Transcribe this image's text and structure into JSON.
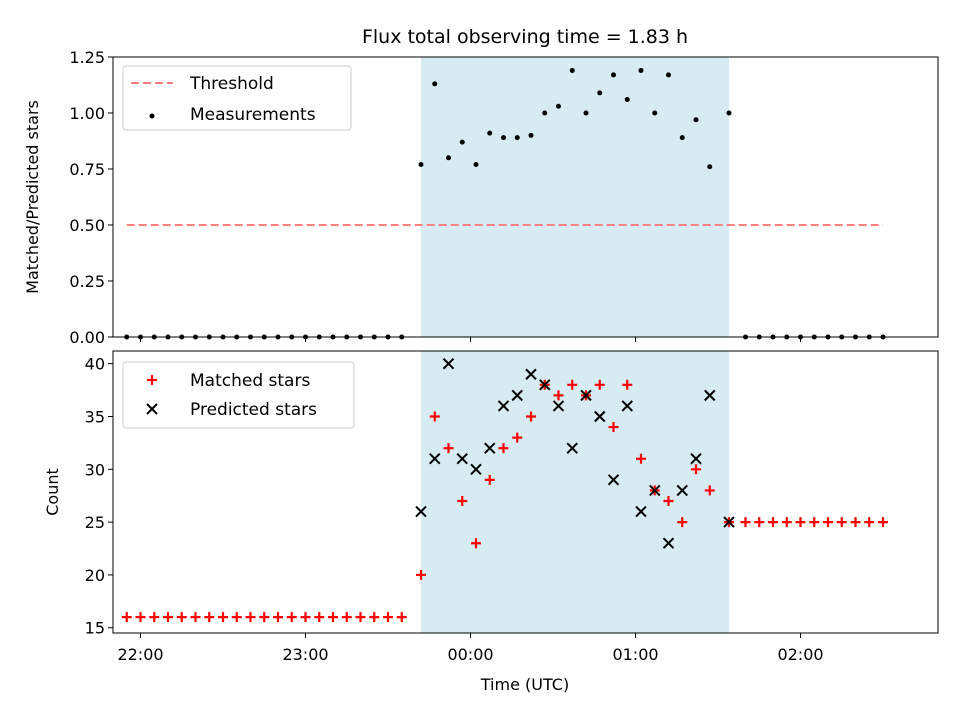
{
  "title": "Flux total observing time = 1.83 h",
  "colors": {
    "shade": "#add8e6",
    "threshold": "#ff7f7f",
    "matched": "#ff0000",
    "predicted": "#000000",
    "measurement": "#000000"
  },
  "chart_data": [
    {
      "type": "scatter",
      "panel": "top",
      "ylabel": "Matched/Predicted stars",
      "xlabel": "",
      "ylim": [
        0,
        1.25
      ],
      "yticks": [
        0.0,
        0.25,
        0.5,
        0.75,
        1.0,
        1.25
      ],
      "yticklabels": [
        "0.00",
        "0.25",
        "0.50",
        "0.75",
        "1.00",
        "1.25"
      ],
      "xlim": [
        "21:50",
        "02:50"
      ],
      "shaded_span": [
        "23:42",
        "01:34"
      ],
      "legend": {
        "placement": "top-left",
        "entries": [
          {
            "label": "Threshold",
            "marker": "dashed-line"
          },
          {
            "label": "Measurements",
            "marker": "dot"
          }
        ]
      },
      "threshold": {
        "name": "Threshold",
        "value": 0.5,
        "x_range": [
          "21:55",
          "02:30"
        ]
      },
      "series": [
        {
          "name": "Measurements",
          "x": [
            "21:55",
            "22:00",
            "22:05",
            "22:10",
            "22:15",
            "22:20",
            "22:25",
            "22:30",
            "22:35",
            "22:40",
            "22:45",
            "22:50",
            "22:55",
            "23:00",
            "23:05",
            "23:10",
            "23:15",
            "23:20",
            "23:25",
            "23:30",
            "23:35",
            "23:42",
            "23:47",
            "23:52",
            "23:57",
            "00:02",
            "00:07",
            "00:12",
            "00:17",
            "00:22",
            "00:27",
            "00:32",
            "00:37",
            "00:42",
            "00:47",
            "00:52",
            "00:57",
            "01:02",
            "01:07",
            "01:12",
            "01:17",
            "01:22",
            "01:27",
            "01:34",
            "01:40",
            "01:45",
            "01:50",
            "01:55",
            "02:00",
            "02:05",
            "02:10",
            "02:15",
            "02:20",
            "02:25",
            "02:30"
          ],
          "values": [
            0,
            0,
            0,
            0,
            0,
            0,
            0,
            0,
            0,
            0,
            0,
            0,
            0,
            0,
            0,
            0,
            0,
            0,
            0,
            0,
            0,
            0.77,
            1.13,
            0.8,
            0.87,
            0.77,
            0.91,
            0.89,
            0.89,
            0.9,
            1.0,
            1.03,
            1.19,
            1.0,
            1.09,
            1.17,
            1.06,
            1.19,
            1.0,
            1.17,
            0.89,
            0.97,
            0.76,
            1.0,
            0,
            0,
            0,
            0,
            0,
            0,
            0,
            0,
            0,
            0,
            0
          ]
        }
      ]
    },
    {
      "type": "scatter",
      "panel": "bottom",
      "ylabel": "Count",
      "xlabel": "Time (UTC)",
      "ylim": [
        14.5,
        41.2
      ],
      "yticks": [
        15,
        20,
        25,
        30,
        35,
        40
      ],
      "yticklabels": [
        "15",
        "20",
        "25",
        "30",
        "35",
        "40"
      ],
      "xlim": [
        "21:50",
        "02:50"
      ],
      "xticks": [
        "22:00",
        "23:00",
        "00:00",
        "01:00",
        "02:00"
      ],
      "shaded_span": [
        "23:42",
        "01:34"
      ],
      "legend": {
        "placement": "top-left",
        "entries": [
          {
            "label": "Matched stars",
            "marker": "plus"
          },
          {
            "label": "Predicted stars",
            "marker": "x"
          }
        ]
      },
      "series": [
        {
          "name": "Matched stars",
          "x": [
            "21:55",
            "22:00",
            "22:05",
            "22:10",
            "22:15",
            "22:20",
            "22:25",
            "22:30",
            "22:35",
            "22:40",
            "22:45",
            "22:50",
            "22:55",
            "23:00",
            "23:05",
            "23:10",
            "23:15",
            "23:20",
            "23:25",
            "23:30",
            "23:35",
            "23:42",
            "23:47",
            "23:52",
            "23:57",
            "00:02",
            "00:07",
            "00:12",
            "00:17",
            "00:22",
            "00:27",
            "00:32",
            "00:37",
            "00:42",
            "00:47",
            "00:52",
            "00:57",
            "01:02",
            "01:07",
            "01:12",
            "01:17",
            "01:22",
            "01:27",
            "01:34",
            "01:40",
            "01:45",
            "01:50",
            "01:55",
            "02:00",
            "02:05",
            "02:10",
            "02:15",
            "02:20",
            "02:25",
            "02:30"
          ],
          "values": [
            16,
            16,
            16,
            16,
            16,
            16,
            16,
            16,
            16,
            16,
            16,
            16,
            16,
            16,
            16,
            16,
            16,
            16,
            16,
            16,
            16,
            20,
            35,
            32,
            27,
            23,
            29,
            32,
            33,
            35,
            38,
            37,
            38,
            37,
            38,
            34,
            38,
            31,
            28,
            27,
            25,
            30,
            28,
            25,
            25,
            25,
            25,
            25,
            25,
            25,
            25,
            25,
            25,
            25,
            25
          ]
        },
        {
          "name": "Predicted stars",
          "x": [
            "23:42",
            "23:47",
            "23:52",
            "23:57",
            "00:02",
            "00:07",
            "00:12",
            "00:17",
            "00:22",
            "00:27",
            "00:32",
            "00:37",
            "00:42",
            "00:47",
            "00:52",
            "00:57",
            "01:02",
            "01:07",
            "01:12",
            "01:17",
            "01:22",
            "01:27",
            "01:34"
          ],
          "values": [
            26,
            31,
            40,
            31,
            30,
            32,
            36,
            37,
            39,
            38,
            36,
            32,
            37,
            35,
            29,
            36,
            26,
            28,
            23,
            28,
            31,
            37,
            25
          ]
        }
      ]
    }
  ]
}
